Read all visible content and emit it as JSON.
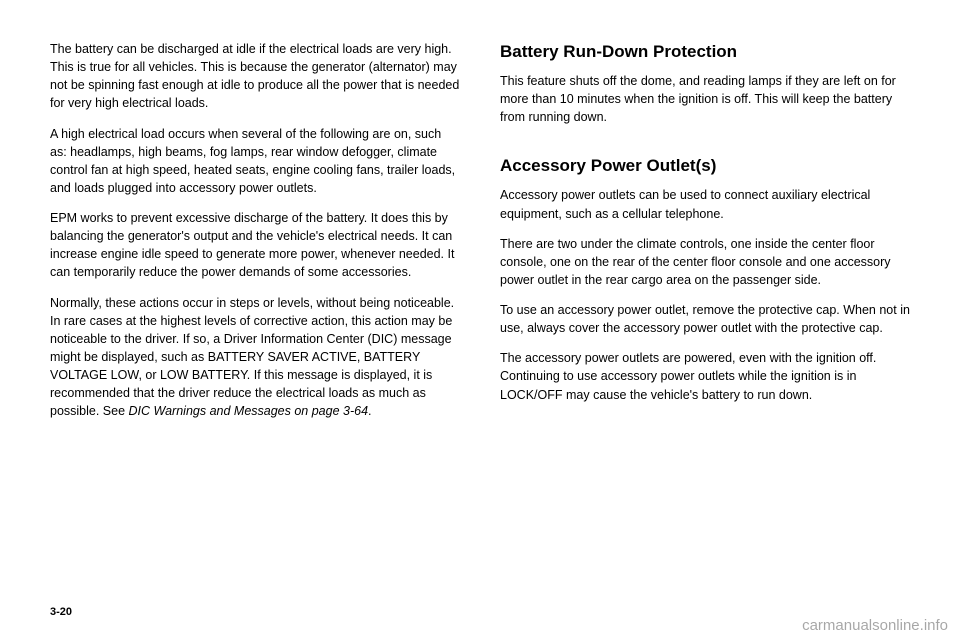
{
  "left": {
    "p1": "The battery can be discharged at idle if the electrical loads are very high. This is true for all vehicles. This is because the generator (alternator) may not be spinning fast enough at idle to produce all the power that is needed for very high electrical loads.",
    "p2": "A high electrical load occurs when several of the following are on, such as: headlamps, high beams, fog lamps, rear window defogger, climate control fan at high speed, heated seats, engine cooling fans, trailer loads, and loads plugged into accessory power outlets.",
    "p3": "EPM works to prevent excessive discharge of the battery. It does this by balancing the generator's output and the vehicle's electrical needs. It can increase engine idle speed to generate more power, whenever needed. It can temporarily reduce the power demands of some accessories.",
    "p4a": "Normally, these actions occur in steps or levels, without being noticeable. In rare cases at the highest levels of corrective action, this action may be noticeable to the driver. If so, a Driver Information Center (DIC) message might be displayed, such as BATTERY SAVER ACTIVE, BATTERY VOLTAGE LOW, or LOW BATTERY. If this message is displayed, it is recommended that the driver reduce the electrical loads as much as possible. See ",
    "p4b": "DIC Warnings and Messages on page 3-64",
    "p4c": "."
  },
  "right": {
    "h1": "Battery Run-Down Protection",
    "p1": "This feature shuts off the dome, and reading lamps if they are left on for more than 10 minutes when the ignition is off. This will keep the battery from running down.",
    "h2": "Accessory Power Outlet(s)",
    "p2": "Accessory power outlets can be used to connect auxiliary electrical equipment, such as a cellular telephone.",
    "p3": "There are two under the climate controls, one inside the center floor console, one on the rear of the center floor console and one accessory power outlet in the rear cargo area on the passenger side.",
    "p4": "To use an accessory power outlet, remove the protective cap. When not in use, always cover the accessory power outlet with the protective cap.",
    "p5": "The accessory power outlets are powered, even with the ignition off. Continuing to use accessory power outlets while the ignition is in LOCK/OFF may cause the vehicle's battery to run down."
  },
  "pageNumber": "3-20",
  "watermark": "carmanualsonline.info"
}
